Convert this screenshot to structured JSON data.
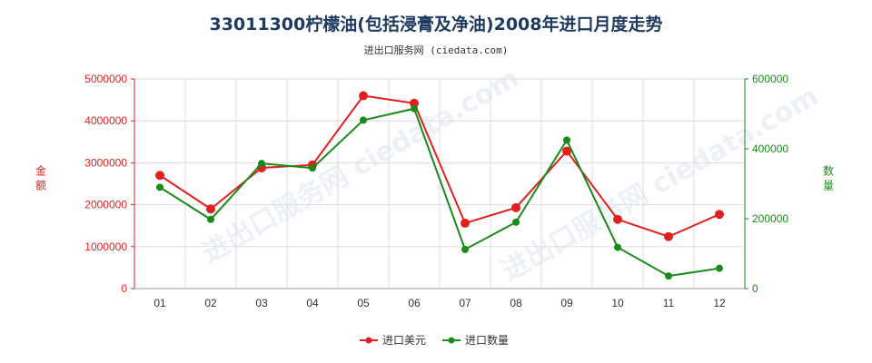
{
  "chart_data": {
    "type": "line",
    "title": "33011300柠檬油(包括浸膏及净油)2008年进口月度走势",
    "subtitle": "进出口服务网 (ciedata.com)",
    "watermark": "进出口服务网 ciedata.com",
    "categories": [
      "01",
      "02",
      "03",
      "04",
      "05",
      "06",
      "07",
      "08",
      "09",
      "10",
      "11",
      "12"
    ],
    "y_left": {
      "label": "金额",
      "ylim": [
        0,
        5000000
      ],
      "ticks": [
        "0",
        "1000000",
        "2000000",
        "3000000",
        "4000000",
        "5000000"
      ],
      "color": "#e02020"
    },
    "y_right": {
      "label": "数量",
      "ylim": [
        0,
        600000
      ],
      "ticks": [
        "0",
        "200000",
        "400000",
        "600000"
      ],
      "color": "#1a8a1a"
    },
    "series": [
      {
        "name": "进口美元",
        "axis": "left",
        "color": "#e02020",
        "values": [
          2700000,
          1900000,
          2880000,
          2950000,
          4600000,
          4420000,
          1560000,
          1930000,
          3280000,
          1650000,
          1240000,
          1770000
        ]
      },
      {
        "name": "进口数量",
        "axis": "right",
        "color": "#1a8a1a",
        "values": [
          290000,
          198000,
          358000,
          345000,
          482000,
          515000,
          112000,
          190000,
          425000,
          118000,
          36000,
          58000
        ]
      }
    ],
    "grid": true,
    "legend_position": "bottom-center"
  }
}
